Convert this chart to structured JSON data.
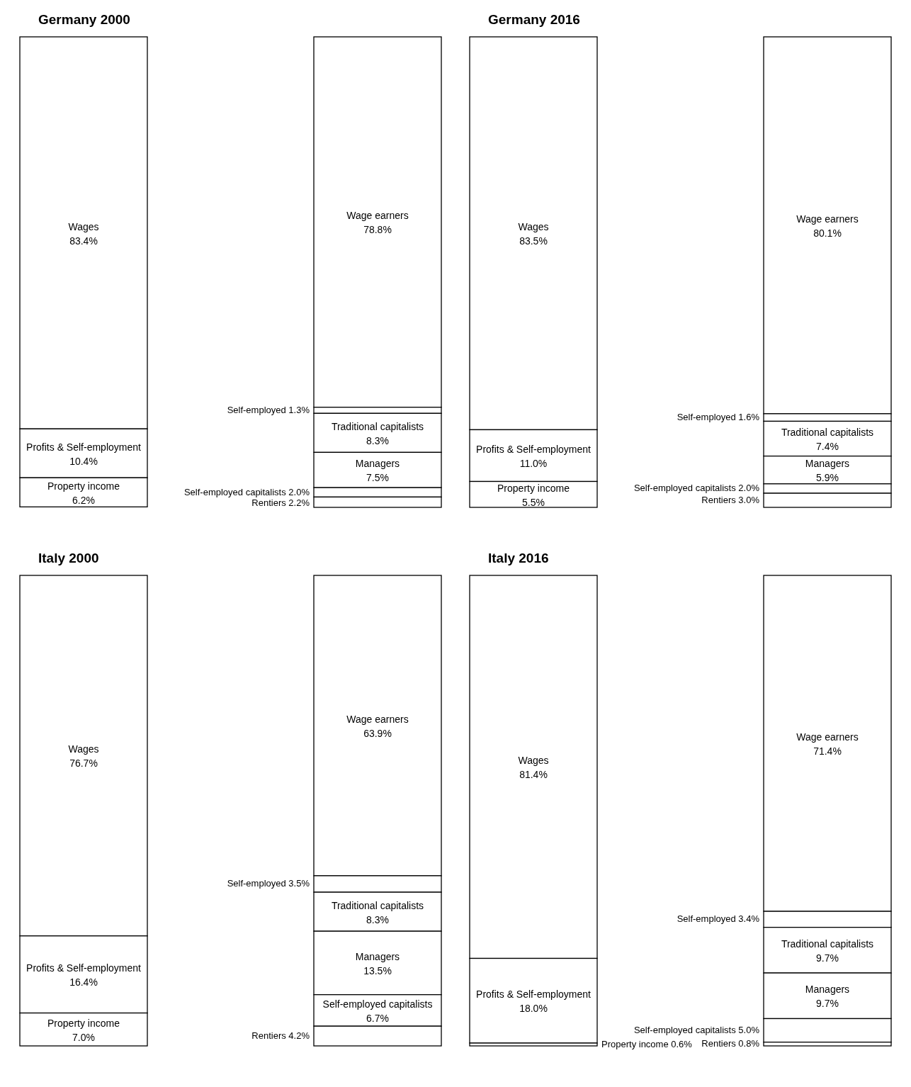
{
  "chart_data": [
    {
      "type": "other",
      "title": "Germany 2000",
      "categories": [
        "Wages",
        "Profits & Self-employment",
        "Property income",
        "Wage earners",
        "Self-employed",
        "Traditional capitalists",
        "Managers",
        "Self-employed capitalists",
        "Rentiers"
      ],
      "series": [
        {
          "values": [
            83.4,
            10.4,
            6.2,
            null,
            null,
            null,
            null,
            null,
            null
          ],
          "value_labels": [
            "83.4%",
            "10.4%",
            "6.2%",
            null,
            null,
            null,
            null,
            null,
            null
          ]
        },
        {
          "values": [
            null,
            null,
            null,
            78.8,
            1.3,
            8.3,
            7.5,
            2.0,
            2.2
          ],
          "value_labels": [
            null,
            null,
            null,
            "78.8%",
            "1.3%",
            "8.3%",
            "7.5%",
            "2.0%",
            "2.2%"
          ]
        }
      ]
    },
    {
      "type": "other",
      "title": "Germany 2016",
      "categories": [
        "Wages",
        "Profits & Self-employment",
        "Property income",
        "Wage earners",
        "Self-employed",
        "Traditional capitalists",
        "Managers",
        "Self-employed capitalists",
        "Rentiers"
      ],
      "series": [
        {
          "values": [
            83.5,
            11.0,
            5.5,
            null,
            null,
            null,
            null,
            null,
            null
          ],
          "value_labels": [
            "83.5%",
            "11.0%",
            "5.5%",
            null,
            null,
            null,
            null,
            null,
            null
          ]
        },
        {
          "values": [
            null,
            null,
            null,
            80.1,
            1.6,
            7.4,
            5.9,
            2.0,
            3.0
          ],
          "value_labels": [
            null,
            null,
            null,
            "80.1%",
            "1.6%",
            "7.4%",
            "5.9%",
            "2.0%",
            "3.0%"
          ]
        }
      ]
    },
    {
      "type": "other",
      "title": "Italy 2000",
      "categories": [
        "Wages",
        "Profits & Self-employment",
        "Property income",
        "Wage earners",
        "Self-employed",
        "Traditional capitalists",
        "Managers",
        "Self-employed capitalists",
        "Rentiers"
      ],
      "series": [
        {
          "values": [
            76.7,
            16.4,
            7.0,
            null,
            null,
            null,
            null,
            null,
            null
          ],
          "value_labels": [
            "76.7%",
            "16.4%",
            "7.0%",
            null,
            null,
            null,
            null,
            null,
            null
          ]
        },
        {
          "values": [
            null,
            null,
            null,
            63.9,
            3.5,
            8.3,
            13.5,
            6.7,
            4.2
          ],
          "value_labels": [
            null,
            null,
            null,
            "63.9%",
            "3.5%",
            "8.3%",
            "13.5%",
            "6.7%",
            "4.2%"
          ]
        }
      ]
    },
    {
      "type": "other",
      "title": "Italy 2016",
      "categories": [
        "Wages",
        "Profits & Self-employment",
        "Property income",
        "Wage earners",
        "Self-employed",
        "Traditional capitalists",
        "Managers",
        "Self-employed capitalists",
        "Rentiers"
      ],
      "series": [
        {
          "values": [
            81.4,
            18.0,
            0.6,
            null,
            null,
            null,
            null,
            null,
            null
          ],
          "value_labels": [
            "81.4%",
            "18.0%",
            "0.6%",
            null,
            null,
            null,
            null,
            null,
            null
          ]
        },
        {
          "values": [
            null,
            null,
            null,
            71.4,
            3.4,
            9.7,
            9.7,
            5.0,
            0.8
          ],
          "value_labels": [
            null,
            null,
            null,
            "71.4%",
            "3.4%",
            "9.7%",
            "9.7%",
            "5.0%",
            "0.8%"
          ]
        }
      ]
    }
  ]
}
